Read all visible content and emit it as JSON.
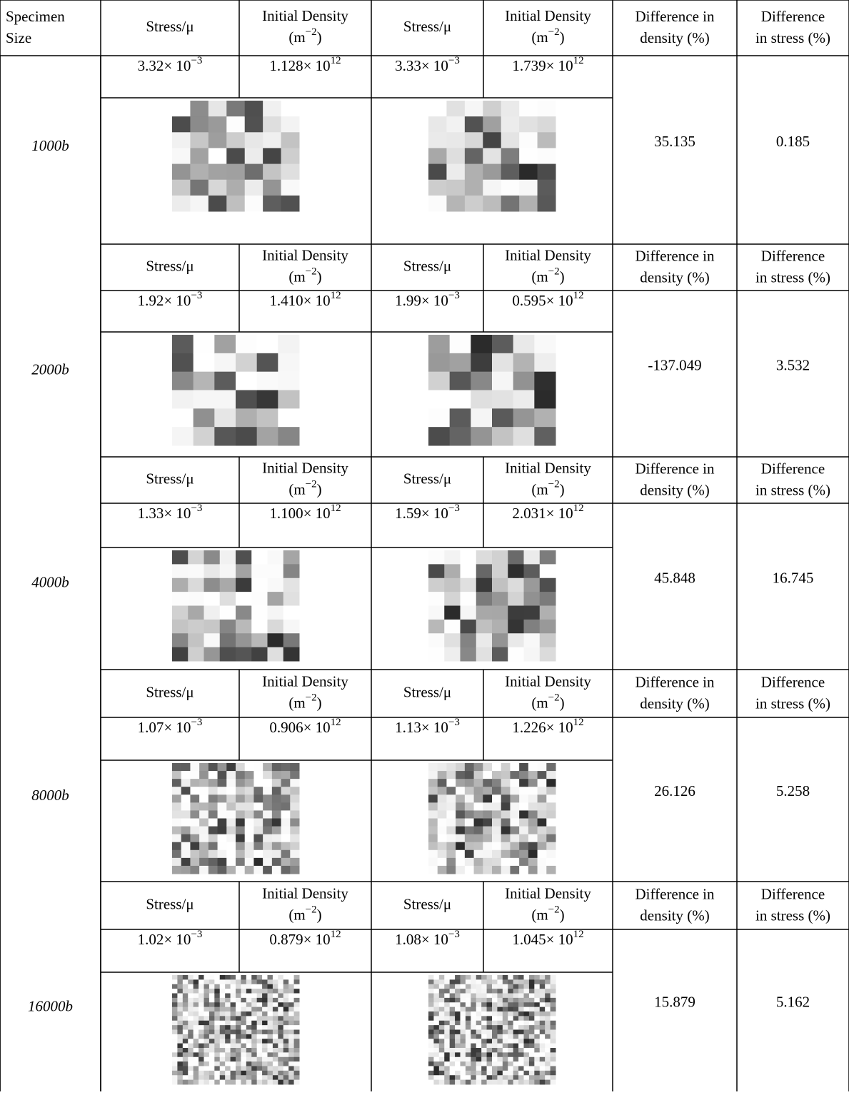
{
  "header": {
    "specimen": [
      "Specimen",
      "Size"
    ],
    "stress": "Stress/μ",
    "density_title": "Initial Density",
    "density_unit": {
      "base": "(m",
      "exp": "−2",
      "end": ")"
    },
    "diff_density": [
      "Difference in",
      "density (%)"
    ],
    "diff_stress": [
      "Difference",
      "in stress (%)"
    ]
  },
  "rows": [
    {
      "size": "1000b",
      "stress_1": {
        "base": "3.32× 10",
        "exp": "−3"
      },
      "density_1": {
        "base": "1.128× 10",
        "exp": "12"
      },
      "stress_2": {
        "base": "3.33× 10",
        "exp": "−3"
      },
      "density_2": {
        "base": "1.739× 10",
        "exp": "12"
      },
      "diff_density": "35.135",
      "diff_stress": "0.185"
    },
    {
      "size": "2000b",
      "stress_1": {
        "base": "1.92× 10",
        "exp": "−3"
      },
      "density_1": {
        "base": "1.410× 10",
        "exp": "12"
      },
      "stress_2": {
        "base": "1.99× 10",
        "exp": "−3"
      },
      "density_2": {
        "base": "0.595× 10",
        "exp": "12"
      },
      "diff_density": "-137.049",
      "diff_stress": "3.532"
    },
    {
      "size": "4000b",
      "stress_1": {
        "base": "1.33× 10",
        "exp": "−3"
      },
      "density_1": {
        "base": "1.100× 10",
        "exp": "12"
      },
      "stress_2": {
        "base": "1.59× 10",
        "exp": "−3"
      },
      "density_2": {
        "base": "2.031× 10",
        "exp": "12"
      },
      "diff_density": "45.848",
      "diff_stress": "16.745"
    },
    {
      "size": "8000b",
      "stress_1": {
        "base": "1.07× 10",
        "exp": "−3"
      },
      "density_1": {
        "base": "0.906× 10",
        "exp": "12"
      },
      "stress_2": {
        "base": "1.13× 10",
        "exp": "−3"
      },
      "density_2": {
        "base": "1.226× 10",
        "exp": "12"
      },
      "diff_density": "26.126",
      "diff_stress": "5.258"
    },
    {
      "size": "16000b",
      "stress_1": {
        "base": "1.02× 10",
        "exp": "−3"
      },
      "density_1": {
        "base": "0.879× 10",
        "exp": "12"
      },
      "stress_2": {
        "base": "1.08× 10",
        "exp": "−3"
      },
      "density_2": {
        "base": "1.045× 10",
        "exp": "12"
      },
      "diff_density": "15.879",
      "diff_stress": "5.162"
    }
  ]
}
